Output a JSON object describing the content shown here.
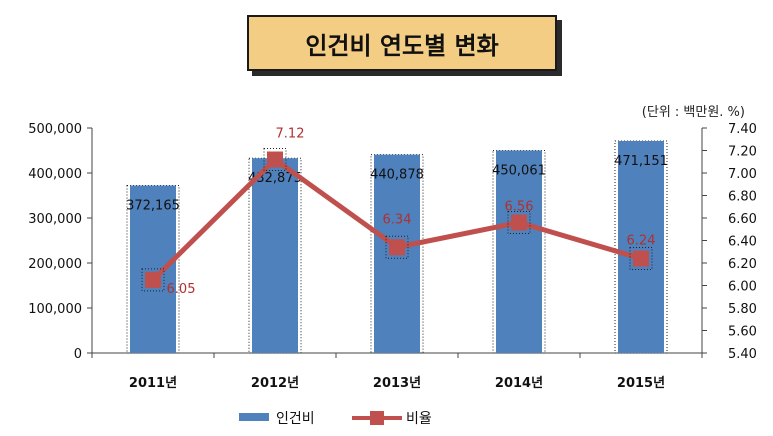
{
  "title": "인건비 연도별 변화",
  "unit_note": "(단위 : 백만원. %)",
  "chart_data": {
    "type": "bar",
    "categories": [
      "2011년",
      "2012년",
      "2013년",
      "2014년",
      "2015년"
    ],
    "series": [
      {
        "name": "인건비",
        "kind": "bar",
        "axis": "left",
        "values": [
          372165,
          432875,
          440878,
          450061,
          471151
        ],
        "labels": [
          "372,165",
          "432,875",
          "440,878",
          "450,061",
          "471,151"
        ],
        "color": "#4f81bd"
      },
      {
        "name": "비율",
        "kind": "line",
        "axis": "right",
        "values": [
          6.05,
          7.12,
          6.34,
          6.56,
          6.24
        ],
        "labels": [
          "6.05",
          "7.12",
          "6.34",
          "6.56",
          "6.24"
        ],
        "color": "#c0504d"
      }
    ],
    "y_left": {
      "ylim": [
        0,
        500000
      ],
      "ticks": [
        0,
        100000,
        200000,
        300000,
        400000,
        500000
      ],
      "tick_labels": [
        "0",
        "100,000",
        "200,000",
        "300,000",
        "400,000",
        "500,000"
      ]
    },
    "y_right": {
      "ylim": [
        5.4,
        7.4
      ],
      "ticks": [
        5.4,
        5.6,
        5.8,
        6.0,
        6.2,
        6.4,
        6.6,
        6.8,
        7.0,
        7.2,
        7.4
      ],
      "tick_labels": [
        "5.40",
        "5.60",
        "5.80",
        "6.00",
        "6.20",
        "6.40",
        "6.60",
        "6.80",
        "7.00",
        "7.20",
        "7.40"
      ]
    },
    "grid": false,
    "legend": "bottom"
  }
}
